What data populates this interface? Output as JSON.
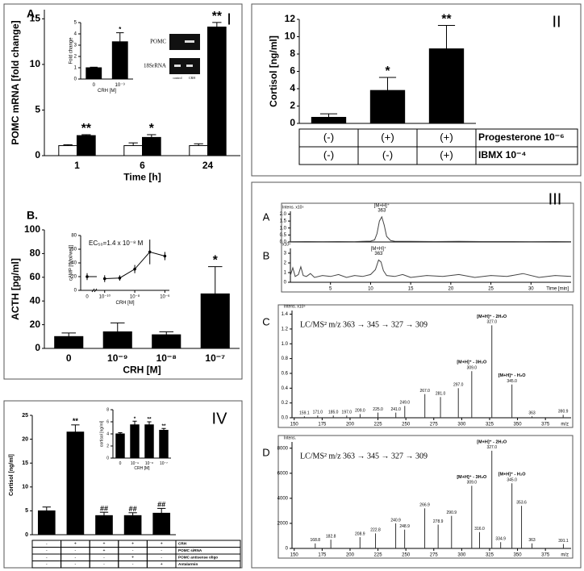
{
  "chart_data": [
    {
      "type": "bar",
      "section_label": "I",
      "panel_label": "A.",
      "y_label": "POMC mRNA [fold change]",
      "x_label": "Time [h]",
      "categories": [
        "1",
        "6",
        "24"
      ],
      "series": [
        {
          "color": "#ffffff",
          "values": [
            1.1,
            1.1,
            1.1
          ],
          "errors": [
            0.1,
            0.3,
            0.2
          ]
        },
        {
          "color": "#000000",
          "values": [
            2.2,
            2.0,
            14.1
          ],
          "errors": [
            0.1,
            0.3,
            0.5
          ]
        }
      ],
      "annotations": [
        "**",
        "*",
        "**"
      ],
      "ylim": [
        0,
        16
      ],
      "yticks": [
        0,
        5,
        10,
        15
      ],
      "gel_labels": [
        "POMC",
        "18SrRNA",
        "control",
        "CRH"
      ]
    },
    {
      "type": "bar",
      "y_label": "Fold change",
      "x_label": "CRH [M]",
      "categories": [
        "0",
        "10⁻⁹"
      ],
      "series": [
        {
          "color": "#000000",
          "values": [
            1,
            3.3
          ],
          "errors": [
            0.05,
            0.8
          ]
        }
      ],
      "annotations": [
        null,
        "*"
      ],
      "ylim": [
        0,
        5
      ],
      "yticks": [
        0,
        1,
        2,
        3,
        4,
        5
      ]
    },
    {
      "type": "bar",
      "panel_label": "B.",
      "y_label": "ACTH [pg/ml]",
      "x_label": "CRH [M]",
      "categories": [
        "0",
        "10⁻⁹",
        "10⁻⁸",
        "10⁻⁷"
      ],
      "series": [
        {
          "color": "#000000",
          "values": [
            10,
            14,
            11.5,
            46
          ],
          "errors": [
            3,
            7.5,
            2.5,
            23
          ]
        }
      ],
      "annotations": [
        null,
        null,
        null,
        "*"
      ],
      "ylim": [
        0,
        100
      ],
      "yticks": [
        0,
        20,
        40,
        60,
        80,
        100
      ]
    },
    {
      "type": "line",
      "y_label": "cAMP [fMol/well]",
      "x_label": "CRH [M]",
      "annotation": "EC₅₀=1.4 x 10⁻⁸ M",
      "x": [
        1e-10,
        1e-09,
        1e-08,
        1e-07,
        1e-06
      ],
      "values": [
        17,
        18,
        31,
        56,
        50
      ],
      "errors": [
        5,
        4,
        6,
        18,
        6
      ],
      "control": {
        "label": "0",
        "value": 20,
        "error": 5
      },
      "xscale": "log",
      "xlim": [
        3e-11,
        2e-06
      ],
      "xticks": [
        {
          "value": 1e-10,
          "label": "10⁻¹⁰"
        },
        {
          "value": 1e-08,
          "label": "10⁻⁸"
        },
        {
          "value": 1e-06,
          "label": "10⁻⁶"
        }
      ],
      "ylim": [
        0,
        80
      ],
      "yticks": [
        0,
        20,
        40,
        60,
        80
      ]
    },
    {
      "type": "bar",
      "section_label": "II",
      "y_label": "Cortisol [ng/ml]",
      "series": [
        {
          "color": "#000000",
          "values": [
            0.7,
            3.8,
            8.6
          ],
          "errors": [
            0.4,
            1.5,
            2.7
          ]
        }
      ],
      "annotations": [
        null,
        "*",
        "**"
      ],
      "ylim": [
        0,
        12
      ],
      "yticks": [
        0,
        2,
        4,
        6,
        8,
        10,
        12
      ],
      "table": [
        {
          "label": "Progesterone 10⁻⁶",
          "cells": [
            "(-)",
            "(+)",
            "(+)"
          ]
        },
        {
          "label": "IBMX 10⁻⁴",
          "cells": [
            "(-)",
            "(-)",
            "(+)"
          ]
        }
      ]
    },
    {
      "type": "line",
      "section_label": "III",
      "panel_label": "A",
      "y_label": "Intens. x10⁵",
      "annotation": [
        "[M+H]⁺",
        "363"
      ],
      "x": [
        0,
        2,
        4,
        6,
        8,
        9,
        10,
        10.5,
        10.8,
        11.1,
        11.4,
        11.7,
        12,
        12.5,
        13,
        15,
        18,
        21,
        24,
        27,
        30,
        33,
        35
      ],
      "values": [
        0.02,
        0.03,
        0.02,
        0.03,
        0.02,
        0.04,
        0.06,
        0.15,
        0.6,
        1.5,
        1.8,
        1.2,
        0.4,
        0.1,
        0.05,
        0.04,
        0.03,
        0.04,
        0.03,
        0.03,
        0.02,
        0.03,
        0.02
      ],
      "xlim": [
        0,
        35
      ],
      "ylim": [
        0,
        2.2
      ],
      "yticks": [
        {
          "value": 0,
          "label": "0.0"
        },
        {
          "value": 0.5,
          "label": "0.5"
        },
        {
          "value": 1,
          "label": "1.0"
        },
        {
          "value": 1.5,
          "label": "1.5"
        },
        {
          "value": 2,
          "label": "2.0"
        }
      ]
    },
    {
      "type": "line",
      "panel_label": "B",
      "y_label": "x10⁴",
      "x_label": "Time [min]",
      "annotation": [
        "[M+H]⁺",
        "363"
      ],
      "x": [
        0,
        0.3,
        0.6,
        1,
        1.3,
        1.6,
        2,
        2.5,
        3,
        4,
        5,
        6,
        7,
        8,
        9,
        10,
        10.6,
        11,
        11.3,
        11.6,
        12,
        13,
        14,
        15,
        17,
        19,
        21,
        23,
        25,
        27,
        29,
        31,
        33,
        35
      ],
      "values": [
        0.7,
        1.5,
        0.6,
        0.8,
        1.6,
        0.7,
        0.6,
        0.9,
        0.5,
        0.7,
        0.6,
        0.8,
        0.5,
        0.7,
        0.6,
        0.8,
        1.3,
        2.3,
        2.1,
        1.2,
        0.7,
        0.6,
        0.8,
        0.5,
        0.7,
        0.6,
        0.8,
        0.5,
        0.7,
        0.6,
        0.9,
        0.5,
        0.7,
        0.6
      ],
      "xlim": [
        0,
        35
      ],
      "xticks": [
        5,
        10,
        15,
        20,
        25,
        30
      ],
      "ylim": [
        0,
        3.5
      ],
      "yticks": [
        0,
        1,
        2,
        3
      ]
    },
    {
      "type": "stem",
      "panel_label": "C",
      "y_label": "Intens. x10⁵",
      "x_label": "m/z",
      "method": "LC/MS² m/z 363 → 345 → 327 → 309",
      "x": [
        159.1,
        171.0,
        185.0,
        197.0,
        209.0,
        225.0,
        241.0,
        249.0,
        267.0,
        281.0,
        297.0,
        309.0,
        327.0,
        345.0,
        363,
        390.9
      ],
      "x_labels": [
        "159.1",
        "171.0",
        "185.0",
        "197.0",
        "209.0",
        "225.0",
        "241.0",
        "249.0",
        "267.0",
        "281.0",
        "297.0",
        "309.0",
        "327.0",
        "345.0",
        "363",
        "390.9"
      ],
      "values": [
        0.02,
        0.03,
        0.03,
        0.03,
        0.05,
        0.07,
        0.07,
        0.16,
        0.32,
        0.28,
        0.4,
        0.63,
        1.25,
        0.45,
        0.02,
        0.04
      ],
      "annotations": [
        null,
        null,
        null,
        null,
        null,
        null,
        null,
        null,
        null,
        null,
        null,
        "[M+H]⁺ - 3H₂O",
        "[M+H]⁺ - 2H₂O",
        "[M+H]⁺ - H₂O",
        null,
        null
      ],
      "xlim": [
        148,
        398
      ],
      "xticks": [
        150,
        175,
        200,
        225,
        250,
        275,
        300,
        325,
        350,
        375
      ],
      "ylim": [
        0,
        1.45
      ],
      "yticks": [
        {
          "value": 0,
          "label": "0.0"
        },
        {
          "value": 0.2,
          "label": "0.2"
        },
        {
          "value": 0.4,
          "label": "0.4"
        },
        {
          "value": 0.6,
          "label": "0.6"
        },
        {
          "value": 0.8,
          "label": "0.8"
        },
        {
          "value": 1,
          "label": "1.0"
        },
        {
          "value": 1.2,
          "label": "1.2"
        },
        {
          "value": 1.4,
          "label": "1.4"
        }
      ]
    },
    {
      "type": "stem",
      "panel_label": "D",
      "y_label": "Intens.",
      "x_label": "m/z",
      "method": "LC/MS² m/z 363 → 345 → 327 → 309",
      "x": [
        168.8,
        182.8,
        208.9,
        222.8,
        240.9,
        248.9,
        266.9,
        278.9,
        290.9,
        309.0,
        316.0,
        327.0,
        334.9,
        345.0,
        353.6,
        363,
        391.1
      ],
      "x_labels": [
        "168.8",
        "182.8",
        "208.9",
        "222.8",
        "240.9",
        "248.9",
        "266.9",
        "278.9",
        "290.9",
        "309.0",
        "316.0",
        "327.0",
        "334.9",
        "345.0",
        "353.6",
        "363",
        "391.1"
      ],
      "values": [
        400,
        700,
        900,
        1200,
        2000,
        1500,
        3200,
        1900,
        2600,
        5000,
        1300,
        7800,
        500,
        5200,
        3400,
        400,
        350
      ],
      "annotations": [
        null,
        null,
        null,
        null,
        null,
        null,
        null,
        null,
        null,
        "[M+H]⁺ - 3H₂O",
        null,
        "[M+H]⁺ - 2H₂O",
        null,
        "[M+H]⁺ - H₂O",
        null,
        null,
        null
      ],
      "xlim": [
        148,
        398
      ],
      "xticks": [
        150,
        175,
        200,
        225,
        250,
        275,
        300,
        325,
        350,
        375
      ],
      "ylim": [
        0,
        8500
      ],
      "yticks": [
        0,
        2000,
        4000,
        6000,
        8000
      ]
    },
    {
      "type": "bar",
      "section_label": "IV",
      "y_label": "Cortisol [ng/ml]",
      "series": [
        {
          "color": "#000000",
          "values": [
            5,
            21.5,
            4,
            4,
            4.5
          ],
          "errors": [
            0.8,
            1.5,
            0.7,
            0.6,
            1
          ]
        }
      ],
      "annotations": [
        null,
        "**",
        "##",
        "##",
        "##"
      ],
      "ylim": [
        0,
        25
      ],
      "yticks": [
        0,
        5,
        10,
        15,
        20,
        25
      ],
      "table": [
        {
          "label": "CRH",
          "cells": [
            "-",
            "+",
            "+",
            "+",
            "+"
          ]
        },
        {
          "label": "POMC siRNA",
          "cells": [
            "-",
            "-",
            "+",
            "-",
            "-"
          ]
        },
        {
          "label": "POMC antisense oligo",
          "cells": [
            "-",
            "-",
            "-",
            "+",
            "-"
          ]
        },
        {
          "label": "Antalarmin",
          "cells": [
            "-",
            "-",
            "-",
            "-",
            "+"
          ]
        }
      ]
    },
    {
      "type": "bar",
      "y_label": "cortisol [ng/ml]",
      "x_label": "CRH [M]",
      "categories": [
        "0",
        "10⁻⁹",
        "10⁻⁸",
        "10⁻⁷"
      ],
      "series": [
        {
          "color": "#000000",
          "values": [
            4,
            5.5,
            5.5,
            4.6
          ],
          "errors": [
            0.2,
            0.6,
            0.5,
            0.3
          ]
        }
      ],
      "annotations": [
        null,
        "*",
        "**",
        "**"
      ],
      "ylim": [
        0,
        8
      ],
      "yticks": [
        0,
        2,
        4,
        6,
        8
      ]
    }
  ]
}
